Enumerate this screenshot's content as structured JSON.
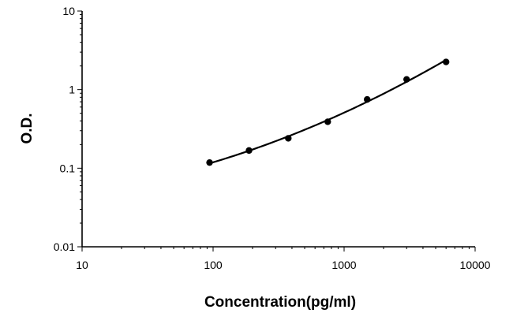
{
  "chart_data": {
    "type": "scatter",
    "title": "",
    "xlabel": "Concentration(pg/ml)",
    "ylabel": "O.D.",
    "x_scale": "log",
    "y_scale": "log",
    "xlim": [
      10,
      10000
    ],
    "ylim": [
      0.01,
      10
    ],
    "x_ticks": [
      10,
      100,
      1000,
      10000
    ],
    "x_tick_labels": [
      "10",
      "100",
      "1000",
      "10000"
    ],
    "y_ticks": [
      0.01,
      0.1,
      1,
      10
    ],
    "y_tick_labels": [
      "0.01",
      "0.1",
      "1",
      "10"
    ],
    "grid": false,
    "legend": "none",
    "series": [
      {
        "x": [
          94,
          188,
          375,
          750,
          1500,
          3000,
          6000
        ],
        "y": [
          0.118,
          0.168,
          0.24,
          0.39,
          0.75,
          1.35,
          2.25
        ],
        "marker": "circle",
        "trendline": "smooth curve",
        "color": "#000000"
      }
    ]
  }
}
